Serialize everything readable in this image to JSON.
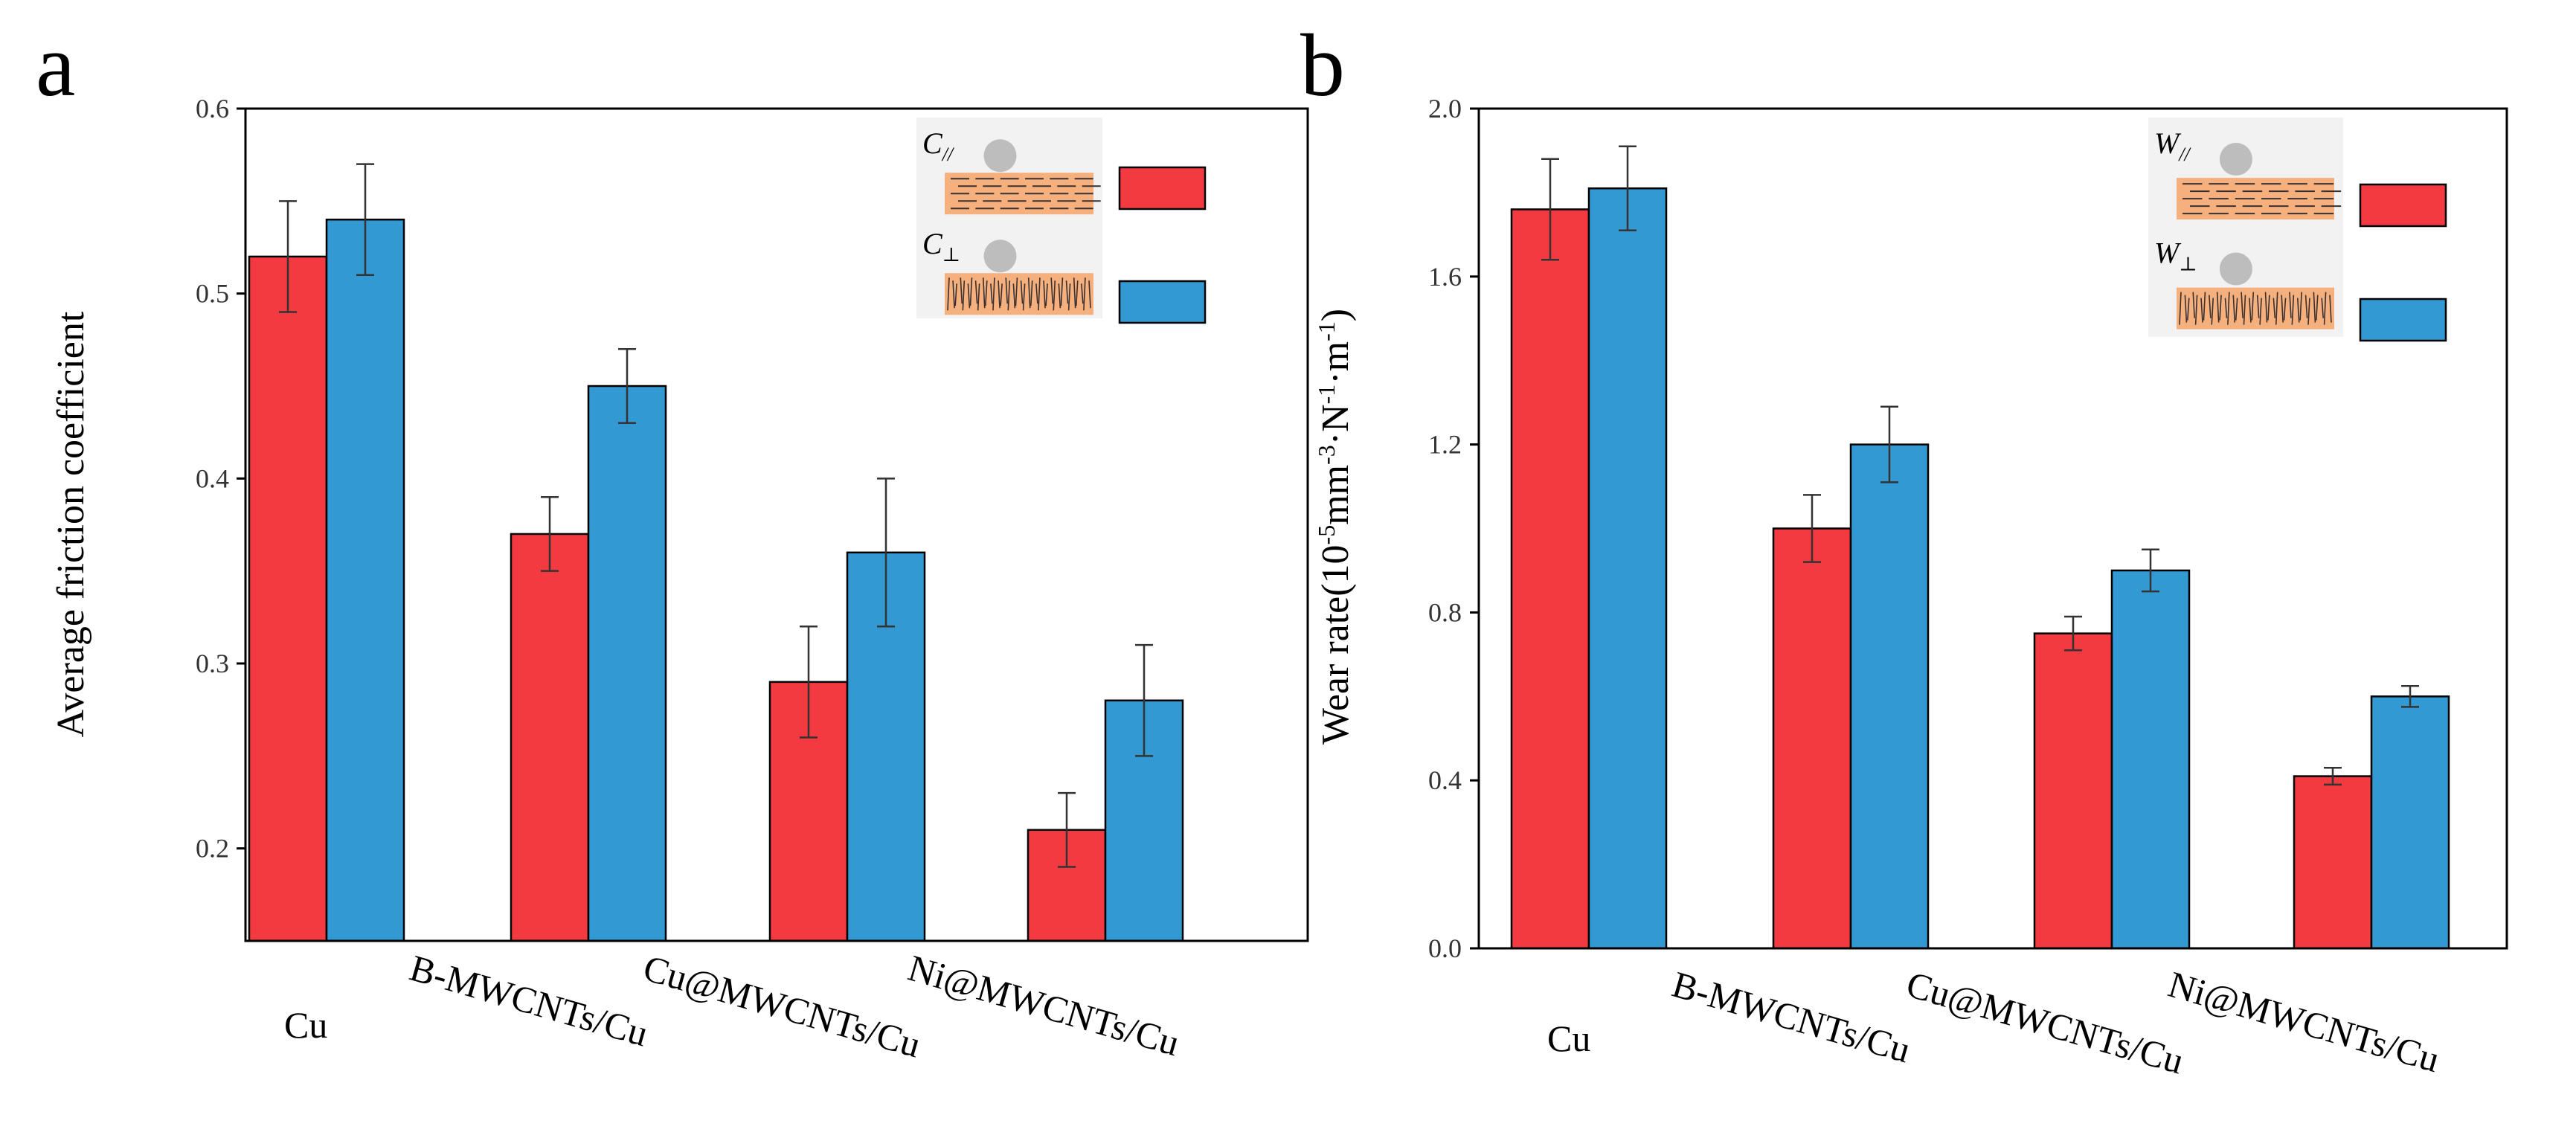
{
  "chart_data": [
    {
      "panel": "a",
      "type": "bar",
      "title": "",
      "xlabel": "",
      "ylabel": "Average friction coefficient",
      "ylim": [
        0.15,
        0.6
      ],
      "yticks": [
        0.2,
        0.3,
        0.4,
        0.5,
        0.6
      ],
      "ytick_labels": [
        "0.2",
        "0.3",
        "0.4",
        "0.5",
        "0.6"
      ],
      "categories": [
        "Cu",
        "B-MWCNTs/Cu",
        "Cu@MWCNTs/Cu",
        "Ni@MWCNTs/Cu"
      ],
      "series": [
        {
          "name": "C//",
          "symbol": "C",
          "sub": "//",
          "color": "#f23a40",
          "values": [
            0.52,
            0.37,
            0.29,
            0.21
          ],
          "errors": [
            0.03,
            0.02,
            0.03,
            0.02
          ]
        },
        {
          "name": "C⊥",
          "symbol": "C",
          "sub": "⊥",
          "color": "#3399d3",
          "values": [
            0.54,
            0.45,
            0.36,
            0.28
          ],
          "errors": [
            0.03,
            0.02,
            0.04,
            0.03
          ]
        }
      ],
      "legend": "top-right"
    },
    {
      "panel": "b",
      "type": "bar",
      "title": "",
      "xlabel": "",
      "ylabel": "Wear rate(10-5mm-3·N-1·m-1)",
      "ylabel_parts": [
        "Wear rate(10",
        "-5",
        "mm",
        "-3",
        "·N",
        "-1",
        "·m",
        "-1",
        ")"
      ],
      "ylim": [
        0.0,
        2.0
      ],
      "yticks": [
        0.0,
        0.4,
        0.8,
        1.2,
        1.6,
        2.0
      ],
      "ytick_labels": [
        "0.0",
        "0.4",
        "0.8",
        "1.2",
        "1.6",
        "2.0"
      ],
      "categories": [
        "Cu",
        "B-MWCNTs/Cu",
        "Cu@MWCNTs/Cu",
        "Ni@MWCNTs/Cu"
      ],
      "series": [
        {
          "name": "W//",
          "symbol": "W",
          "sub": "//",
          "color": "#f23a40",
          "values": [
            1.76,
            1.0,
            0.75,
            0.41
          ],
          "errors": [
            0.12,
            0.08,
            0.04,
            0.02
          ]
        },
        {
          "name": "W⊥",
          "symbol": "W",
          "sub": "⊥",
          "color": "#3399d3",
          "values": [
            1.81,
            1.2,
            0.9,
            0.6
          ],
          "errors": [
            0.1,
            0.09,
            0.05,
            0.025
          ]
        }
      ],
      "legend": "top-right"
    }
  ],
  "colors": {
    "red_series": "#f23a40",
    "blue_series": "#3399d3",
    "inset_sample": "#f5b07e",
    "inset_ball": "#bdbdbd",
    "inset_background": "#f2f2f2"
  }
}
